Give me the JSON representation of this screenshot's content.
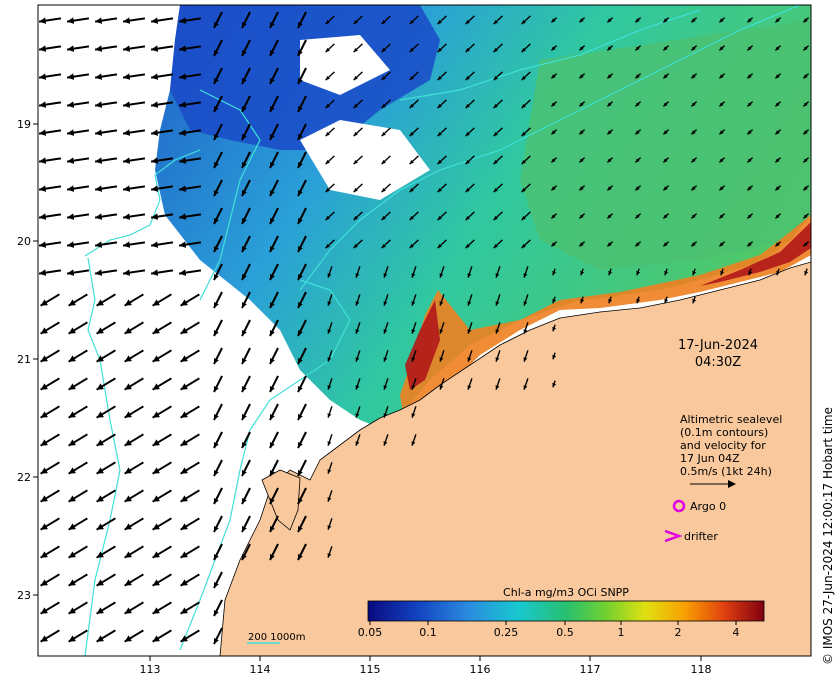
{
  "map": {
    "longitude_ticks": [
      "113",
      "114",
      "115",
      "116",
      "117",
      "118"
    ],
    "latitude_ticks": [
      "19",
      "20",
      "21",
      "22",
      "23"
    ],
    "datetime_line1": "17-Jun-2024",
    "datetime_line2": "04:30Z",
    "legend_lines": [
      "Altimetric sealevel",
      "(0.1m contours)",
      "and velocity for",
      "17 Jun 04Z",
      "0.5m/s (1kt 24h)"
    ],
    "argo_label": "Argo 0",
    "drifter_label": "drifter",
    "bathymetry_label": "200  1000m",
    "colorbar_title": "Chl-a mg/m3 OCi SNPP",
    "colorbar_ticks": [
      "0.05",
      "0.1",
      "0.25",
      "0.5",
      "1",
      "2",
      "4"
    ],
    "copyright": "© IMOS 27-Jun-2024 12:00:17 Hobart time",
    "colors": {
      "land": "#f9c99d",
      "contour": "#40e0d8",
      "argo": "#e000e0",
      "drifter": "#e000e0"
    }
  }
}
